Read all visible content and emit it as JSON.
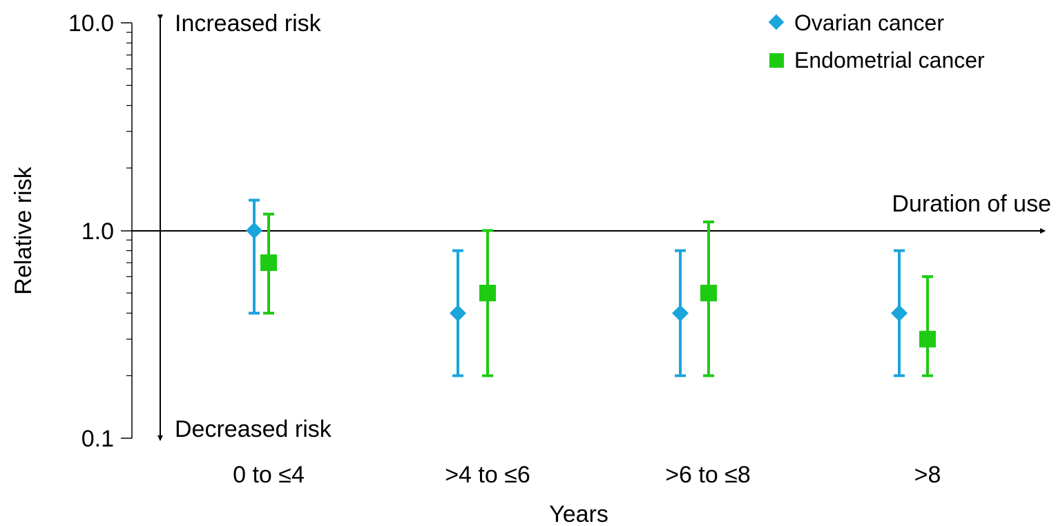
{
  "chart_data": {
    "type": "scatter",
    "scale": "log",
    "ylabel": "Relative risk",
    "xlabel": "Years",
    "yticks": [
      "10.0",
      "1.0",
      "0.1"
    ],
    "ylim": [
      0.1,
      10
    ],
    "categories": [
      "0 to ≤4",
      ">4 to ≤6",
      ">6 to ≤8",
      ">8"
    ],
    "annotations": {
      "increased": "Increased risk",
      "decreased": "Decreased risk",
      "duration": "Duration of use"
    },
    "legend_position": "top-right",
    "series": [
      {
        "name": "Ovarian cancer",
        "marker": "diamond",
        "color": "#1aa5db",
        "values": [
          1.0,
          0.4,
          0.4,
          0.4
        ],
        "lower": [
          0.4,
          0.2,
          0.2,
          0.2
        ],
        "upper": [
          1.4,
          0.8,
          0.8,
          0.8
        ]
      },
      {
        "name": "Endometrial cancer",
        "marker": "square",
        "color": "#1ecb12",
        "values": [
          0.7,
          0.5,
          0.5,
          0.3
        ],
        "lower": [
          0.4,
          0.2,
          0.2,
          0.2
        ],
        "upper": [
          1.2,
          1.0,
          1.1,
          0.6
        ]
      }
    ]
  }
}
